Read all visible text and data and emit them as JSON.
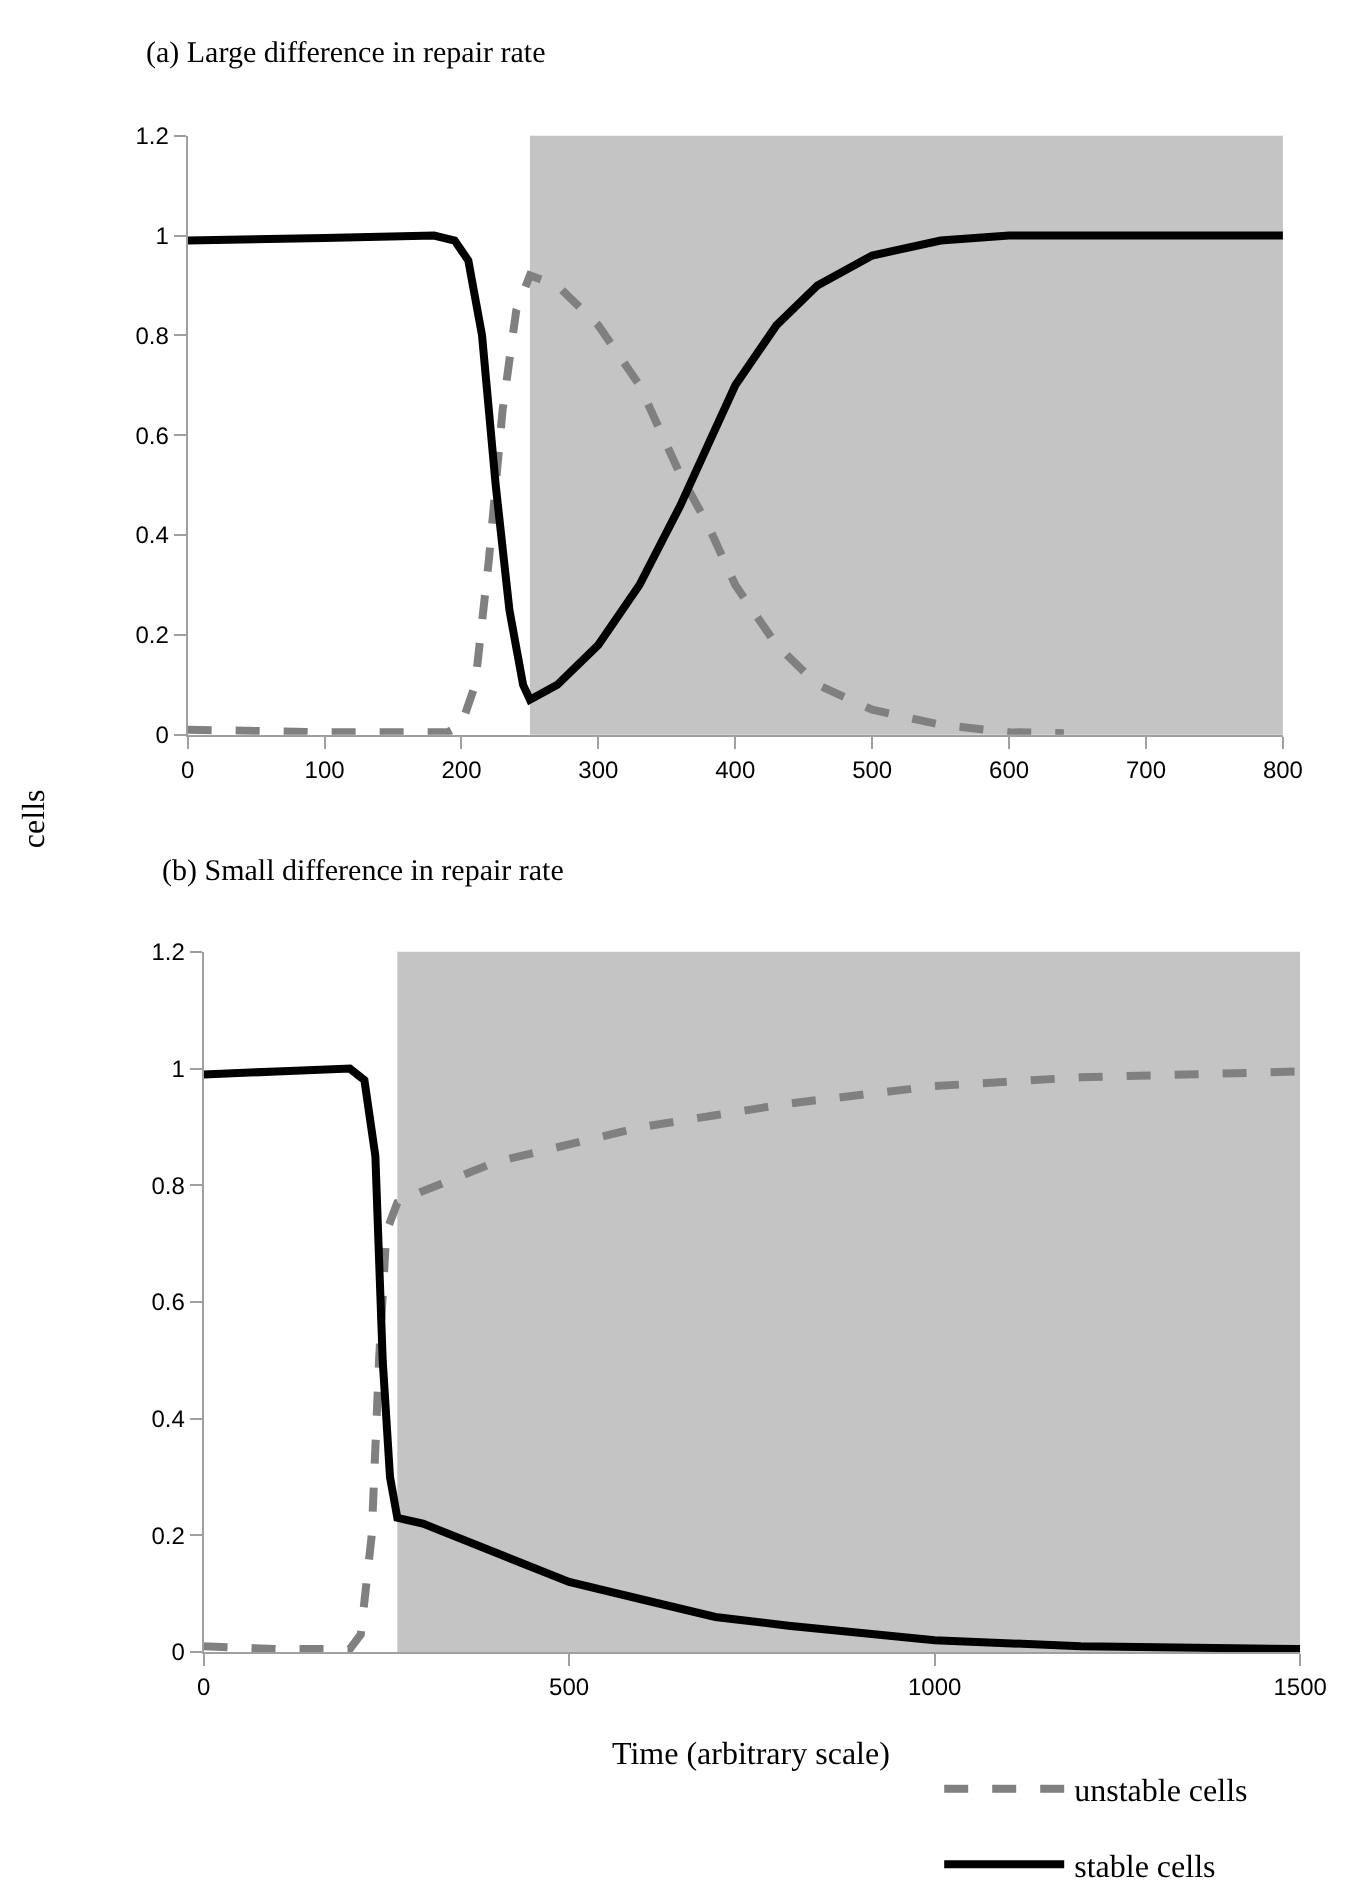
{
  "chart_data": [
    {
      "type": "line",
      "title": "(a) Large difference in repair rate",
      "ylabel": "cells",
      "xlim": [
        0,
        800
      ],
      "xticks": [
        0,
        100,
        200,
        300,
        400,
        500,
        600,
        700,
        800
      ],
      "ylim": [
        0,
        1.2
      ],
      "yticks": [
        0,
        0.2,
        0.4,
        0.6,
        0.8,
        1,
        1.2
      ],
      "grid": false,
      "legend": "bottom right",
      "marker": "none",
      "bands": [
        {
          "axis": "x",
          "from": 250,
          "to": 800,
          "color": "#c4c4c4"
        }
      ],
      "series": [
        {
          "name": "unstable cells",
          "color": "#808080",
          "line_style": "dashed",
          "x": [
            0,
            100,
            190,
            200,
            210,
            220,
            230,
            240,
            250,
            270,
            300,
            330,
            360,
            380,
            400,
            430,
            460,
            500,
            550,
            600,
            640
          ],
          "values": [
            0.01,
            0.005,
            0.005,
            0.02,
            0.1,
            0.35,
            0.65,
            0.85,
            0.92,
            0.9,
            0.82,
            0.7,
            0.52,
            0.42,
            0.3,
            0.18,
            0.1,
            0.05,
            0.02,
            0.005,
            0.003
          ]
        },
        {
          "name": "stable cells",
          "color": "#000000",
          "line_style": "solid",
          "x": [
            0,
            100,
            180,
            195,
            205,
            215,
            225,
            235,
            245,
            250,
            270,
            300,
            330,
            360,
            380,
            400,
            430,
            460,
            500,
            550,
            600,
            800
          ],
          "values": [
            0.99,
            0.995,
            1.0,
            0.99,
            0.95,
            0.8,
            0.5,
            0.25,
            0.1,
            0.07,
            0.1,
            0.18,
            0.3,
            0.46,
            0.58,
            0.7,
            0.82,
            0.9,
            0.96,
            0.99,
            1.0,
            1.0
          ]
        }
      ]
    },
    {
      "type": "line",
      "title": "(b) Small difference in repair rate",
      "xlabel": "Time (arbitrary scale)",
      "xlim": [
        0,
        1500
      ],
      "xticks": [
        0,
        500,
        1000,
        1500
      ],
      "ylim": [
        0,
        1.2
      ],
      "yticks": [
        0,
        0.2,
        0.4,
        0.6,
        0.8,
        1,
        1.2
      ],
      "grid": false,
      "legend": "bottom right",
      "marker": "none",
      "bands": [
        {
          "axis": "x",
          "from": 265,
          "to": 1500,
          "color": "#c4c4c4"
        }
      ],
      "series": [
        {
          "name": "unstable cells",
          "color": "#808080",
          "line_style": "dashed",
          "x": [
            0,
            100,
            200,
            215,
            230,
            240,
            250,
            265,
            300,
            400,
            500,
            600,
            700,
            800,
            1000,
            1200,
            1500
          ],
          "values": [
            0.01,
            0.005,
            0.005,
            0.03,
            0.2,
            0.5,
            0.72,
            0.77,
            0.79,
            0.84,
            0.87,
            0.9,
            0.92,
            0.94,
            0.97,
            0.985,
            0.995
          ]
        },
        {
          "name": "stable cells",
          "color": "#000000",
          "line_style": "solid",
          "x": [
            0,
            100,
            200,
            220,
            235,
            245,
            255,
            265,
            300,
            400,
            500,
            600,
            700,
            800,
            1000,
            1200,
            1500
          ],
          "values": [
            0.99,
            0.995,
            1.0,
            0.98,
            0.85,
            0.5,
            0.3,
            0.23,
            0.22,
            0.17,
            0.12,
            0.09,
            0.06,
            0.045,
            0.02,
            0.01,
            0.005
          ]
        }
      ]
    }
  ]
}
